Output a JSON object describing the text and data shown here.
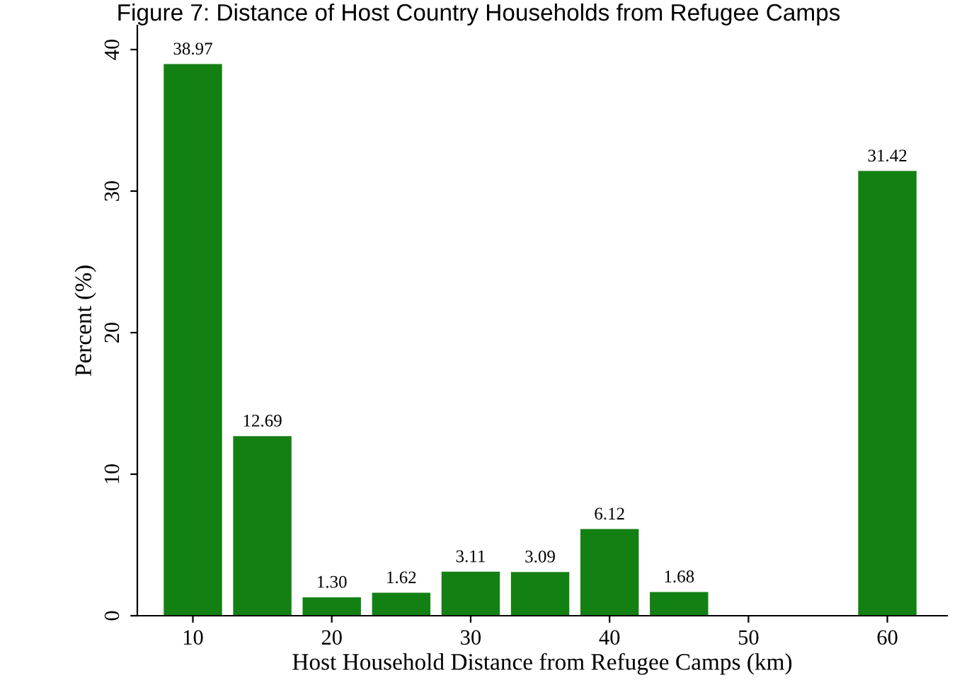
{
  "chart_data": {
    "type": "bar",
    "title": "Figure 7: Distance of Host Country Households from Refugee Camps",
    "xlabel": "Host Household Distance from Refugee Camps (km)",
    "ylabel": "Percent (%)",
    "x": [
      10,
      15,
      20,
      25,
      30,
      35,
      40,
      45,
      60
    ],
    "values": [
      38.97,
      12.69,
      1.3,
      1.62,
      3.11,
      3.09,
      6.12,
      1.68,
      31.42
    ],
    "value_labels": [
      "38.97",
      "12.69",
      "1.30",
      "1.62",
      "3.11",
      "3.09",
      "6.12",
      "1.68",
      "31.42"
    ],
    "color": "#138013",
    "xlim": [
      6,
      64.3
    ],
    "xticks": [
      10,
      20,
      30,
      40,
      50,
      60
    ],
    "ylim": [
      0,
      41.7
    ],
    "yticks": [
      0,
      10,
      20,
      30,
      40
    ],
    "grid": false
  }
}
